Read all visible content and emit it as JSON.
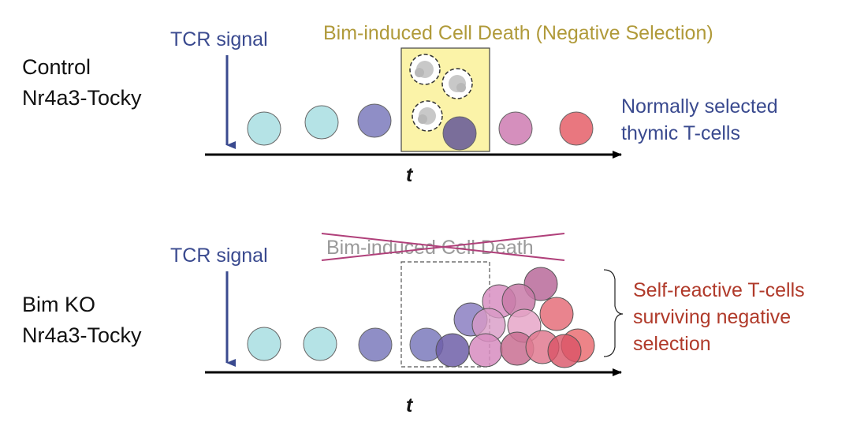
{
  "control": {
    "label_line1": "Control",
    "label_line2": "Nr4a3-Tocky",
    "tcr_signal": "TCR signal",
    "death_title": "Bim-induced Cell Death (Negative Selection)",
    "outcome_line1": "Normally selected",
    "outcome_line2": "thymic T-cells",
    "axis_label": "t"
  },
  "bimko": {
    "label_line1": "Bim KO",
    "label_line2": "Nr4a3-Tocky",
    "tcr_signal": "TCR signal",
    "death_title_crossed": "Bim-induced Cell Death",
    "outcome_line1": "Self-reactive T-cells",
    "outcome_line2": "surviving negative",
    "outcome_line3": "selection",
    "axis_label": "t"
  },
  "colors": {
    "tcr_blue": "#3a4a8f",
    "death_gold": "#b09a3a",
    "death_box_fill": "#fbf3a8",
    "outcome_red": "#b03a2a",
    "cross_magenta": "#b0407a",
    "cell_cyan": "#b5e3e6",
    "cell_blue": "#8f8ec6",
    "cell_purple": "#7a6e9a",
    "cell_pink": "#d58fbd",
    "cell_red": "#e9777f"
  }
}
